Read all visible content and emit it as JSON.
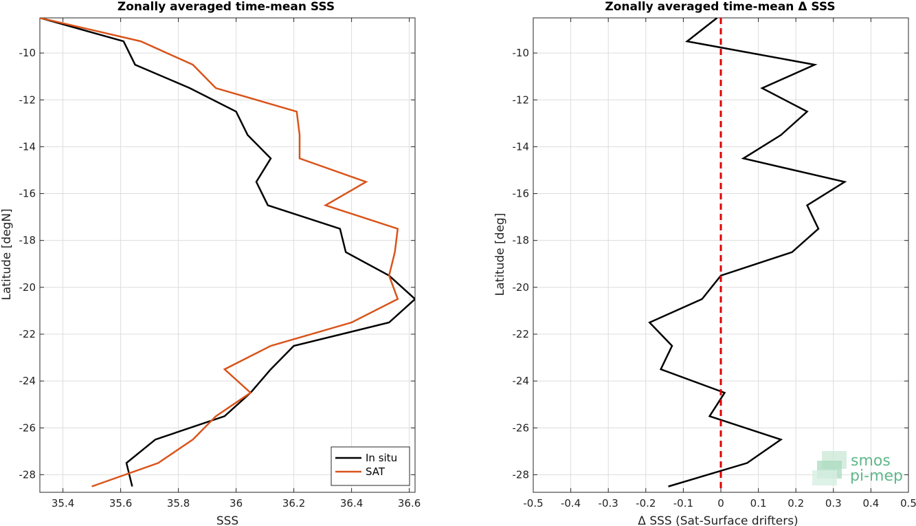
{
  "chart_data": [
    {
      "type": "line",
      "title": "Zonally averaged time-mean SSS",
      "xlabel": "SSS",
      "ylabel": "Latitude [degN]",
      "xlim": [
        35.32,
        36.62
      ],
      "ylim": [
        -28.75,
        -8.5
      ],
      "xticks": [
        35.4,
        35.6,
        35.8,
        36.0,
        36.2,
        36.4,
        36.6
      ],
      "xtick_labels": [
        "35.4",
        "35.6",
        "35.8",
        "36",
        "36.2",
        "36.4",
        "36.6"
      ],
      "yticks": [
        -10,
        -12,
        -14,
        -16,
        -18,
        -20,
        -22,
        -24,
        -26,
        -28
      ],
      "ytick_labels": [
        "-10",
        "-12",
        "-14",
        "-16",
        "-18",
        "-20",
        "-22",
        "-24",
        "-26",
        "-28"
      ],
      "grid": true,
      "legend_position": "bottom-right",
      "series": [
        {
          "name": "In situ",
          "color": "#000000",
          "x": [
            35.32,
            35.61,
            35.65,
            35.84,
            36.0,
            36.04,
            36.12,
            36.07,
            36.11,
            36.36,
            36.38,
            36.53,
            36.62,
            36.53,
            36.2,
            36.12,
            36.05,
            35.96,
            35.72,
            35.62,
            35.64
          ],
          "y": [
            -8.5,
            -9.5,
            -10.5,
            -11.5,
            -12.5,
            -13.5,
            -14.5,
            -15.5,
            -16.5,
            -17.5,
            -18.5,
            -19.5,
            -20.5,
            -21.5,
            -22.5,
            -23.5,
            -24.5,
            -25.5,
            -26.5,
            -27.5,
            -28.5
          ]
        },
        {
          "name": "SAT",
          "color": "#d95319",
          "x": [
            35.32,
            35.67,
            35.85,
            35.93,
            36.21,
            36.22,
            36.22,
            36.45,
            36.31,
            36.56,
            36.55,
            36.53,
            36.56,
            36.4,
            36.12,
            35.96,
            36.05,
            35.93,
            35.85,
            35.73,
            35.5
          ],
          "y": [
            -8.5,
            -9.5,
            -10.5,
            -11.5,
            -12.5,
            -13.5,
            -14.5,
            -15.5,
            -16.5,
            -17.5,
            -18.5,
            -19.5,
            -20.5,
            -21.5,
            -22.5,
            -23.5,
            -24.5,
            -25.5,
            -26.5,
            -27.5,
            -28.5
          ]
        }
      ]
    },
    {
      "type": "line",
      "title": "Zonally averaged time-mean Δ SSS",
      "xlabel": "Δ SSS (Sat-Surface drifters)",
      "ylabel": "Latitude [deg]",
      "xlim": [
        -0.5,
        0.5
      ],
      "ylim": [
        -28.75,
        -8.5
      ],
      "xticks": [
        -0.5,
        -0.4,
        -0.3,
        -0.2,
        -0.1,
        0,
        0.1,
        0.2,
        0.3,
        0.4,
        0.5
      ],
      "xtick_labels": [
        "-0.5",
        "-0.4",
        "-0.3",
        "-0.2",
        "-0.1",
        "0",
        "0.1",
        "0.2",
        "0.3",
        "0.4",
        "0.5"
      ],
      "yticks": [
        -10,
        -12,
        -14,
        -16,
        -18,
        -20,
        -22,
        -24,
        -26,
        -28
      ],
      "ytick_labels": [
        "-10",
        "-12",
        "-14",
        "-16",
        "-18",
        "-20",
        "-22",
        "-24",
        "-26",
        "-28"
      ],
      "grid": true,
      "reference_line": {
        "x": 0,
        "color": "#e00000",
        "style": "dashed"
      },
      "series": [
        {
          "color": "#000000",
          "x": [
            -0.01,
            -0.09,
            0.25,
            0.11,
            0.23,
            0.16,
            0.06,
            0.33,
            0.23,
            0.26,
            0.19,
            0.0,
            -0.05,
            -0.19,
            -0.13,
            -0.16,
            0.01,
            -0.03,
            0.16,
            0.07,
            -0.14
          ],
          "y": [
            -8.5,
            -9.5,
            -10.5,
            -11.5,
            -12.5,
            -13.5,
            -14.5,
            -15.5,
            -16.5,
            -17.5,
            -18.5,
            -19.5,
            -20.5,
            -21.5,
            -22.5,
            -23.5,
            -24.5,
            -25.5,
            -26.5,
            -27.5,
            -28.5
          ]
        }
      ]
    }
  ],
  "branding": {
    "line1": "smos",
    "line2": "pi-mep",
    "color": "#5fb88a"
  }
}
